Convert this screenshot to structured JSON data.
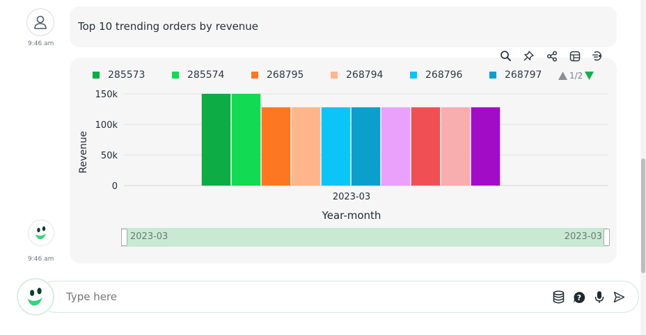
{
  "user_message": {
    "text": "Top 10 trending orders by revenue",
    "time": "9:46 am",
    "avatar_icon": "user-icon"
  },
  "bot_message": {
    "time": "9:46 am",
    "avatar_icon": "bot-face-icon",
    "toolbar": [
      {
        "name": "zoom",
        "icon": "search-icon"
      },
      {
        "name": "pin",
        "icon": "pin-icon"
      },
      {
        "name": "share",
        "icon": "share-icon"
      },
      {
        "name": "table",
        "icon": "table-icon"
      },
      {
        "name": "explain",
        "icon": "sql-icon"
      }
    ]
  },
  "legend": {
    "items": [
      {
        "label": "285573",
        "color": "#0eac44"
      },
      {
        "label": "285574",
        "color": "#12da52"
      },
      {
        "label": "268795",
        "color": "#fd7723"
      },
      {
        "label": "268794",
        "color": "#feb68a"
      },
      {
        "label": "268796",
        "color": "#0cc5f7"
      },
      {
        "label": "268797",
        "color": "#0b9fcb"
      }
    ],
    "page": "1/2"
  },
  "chart_data": {
    "type": "bar",
    "categories": [
      "2023-03"
    ],
    "xlabel": "Year-month",
    "ylabel": "Revenue",
    "ylim": [
      0,
      150000
    ],
    "yticks": [
      "0",
      "50k",
      "100k",
      "150k"
    ],
    "grid": true,
    "legend_position": "top",
    "series": [
      {
        "name": "285573",
        "color": "#0eac44",
        "values": [
          150000
        ]
      },
      {
        "name": "285574",
        "color": "#12da52",
        "values": [
          150000
        ]
      },
      {
        "name": "268795",
        "color": "#fd7723",
        "values": [
          128000
        ]
      },
      {
        "name": "268794",
        "color": "#feb68a",
        "values": [
          128000
        ]
      },
      {
        "name": "268796",
        "color": "#0cc5f7",
        "values": [
          128000
        ]
      },
      {
        "name": "268797",
        "color": "#0b9fcb",
        "values": [
          128000
        ]
      },
      {
        "color": "#e9a1fc",
        "values": [
          128000
        ]
      },
      {
        "color": "#f04f53",
        "values": [
          128000
        ]
      },
      {
        "color": "#f8adae",
        "values": [
          128000
        ]
      },
      {
        "color": "#a20cc6",
        "values": [
          128000
        ]
      }
    ]
  },
  "range_slider": {
    "start_label": "2023-03",
    "end_label": "2023-03"
  },
  "input": {
    "placeholder": "Type here",
    "icons": [
      "database-icon",
      "help-icon",
      "microphone-icon",
      "send-icon"
    ]
  }
}
